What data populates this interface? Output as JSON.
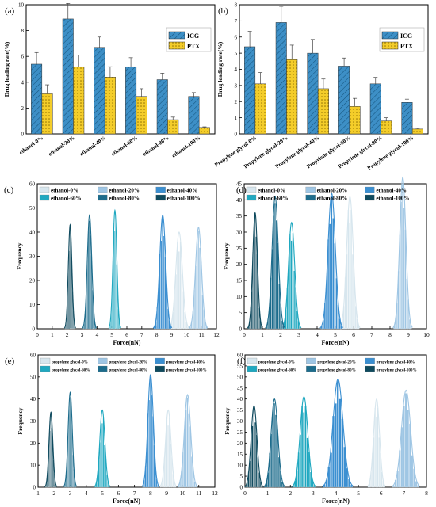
{
  "figure": {
    "colors": {
      "icg": "#3d8fc6",
      "ptx": "#f4cd2a",
      "fit_light": "#d7e6ee",
      "fit_blue": "#3b8fd1",
      "fit_teal": "#1fa8c0",
      "fit_dark": "#0f4a5e"
    }
  },
  "chart_data": [
    {
      "panel": "(a)",
      "type": "bar",
      "ylabel": "Drug loading rate(%)",
      "ylim": [
        0,
        10
      ],
      "yticks": [
        0,
        2,
        4,
        6,
        8,
        10
      ],
      "tick_labels_rotated": true,
      "categories": [
        "ethanol-0%",
        "ethanol-20%",
        "ethanol-40%",
        "ethanol-60%",
        "ethanol-80%",
        "ethanol-100%"
      ],
      "legend_position": "top-right",
      "series": [
        {
          "name": "ICG",
          "color": "#3d8fc6",
          "pattern": "hatch",
          "values": [
            5.4,
            8.9,
            6.7,
            5.2,
            4.2,
            2.9
          ],
          "errors": [
            0.9,
            1.2,
            0.8,
            0.7,
            0.5,
            0.3
          ]
        },
        {
          "name": "PTX",
          "color": "#f4cd2a",
          "pattern": "dots",
          "values": [
            3.1,
            5.2,
            4.4,
            2.9,
            1.1,
            0.5
          ],
          "errors": [
            0.7,
            0.9,
            0.8,
            0.6,
            0.2,
            0.05
          ]
        }
      ]
    },
    {
      "panel": "(b)",
      "type": "bar",
      "ylabel": "Drug loading rate(%)",
      "ylim": [
        0,
        8
      ],
      "yticks": [
        0,
        1,
        2,
        3,
        4,
        5,
        6,
        7,
        8
      ],
      "tick_labels_rotated": true,
      "categories": [
        "Propylene glycol-0%",
        "Propylene glycol-20%",
        "Propylene glycol-40%",
        "Propylene glycol-60%",
        "Propylene glycol-80%",
        "Propylene glycol-100%"
      ],
      "legend_position": "top-right",
      "series": [
        {
          "name": "ICG",
          "color": "#3d8fc6",
          "pattern": "hatch",
          "values": [
            5.4,
            6.9,
            5.0,
            4.2,
            3.1,
            1.95
          ],
          "errors": [
            0.95,
            1.0,
            0.85,
            0.5,
            0.4,
            0.2
          ]
        },
        {
          "name": "PTX",
          "color": "#f4cd2a",
          "pattern": "dots",
          "values": [
            3.1,
            4.6,
            2.8,
            1.7,
            0.8,
            0.3
          ],
          "errors": [
            0.7,
            0.9,
            0.6,
            0.5,
            0.2,
            0.05
          ]
        }
      ]
    },
    {
      "panel": "(c)",
      "type": "histogram",
      "xlabel": "Force(nN)",
      "ylabel": "Frequency",
      "xlim": [
        0,
        12
      ],
      "xticks": [
        0,
        1,
        2,
        3,
        4,
        5,
        6,
        7,
        8,
        9,
        10,
        11,
        12
      ],
      "ylim": [
        0,
        60
      ],
      "yticks": [
        0,
        10,
        20,
        30,
        40,
        50,
        60
      ],
      "legend_position": "top",
      "series": [
        {
          "name": "ethanol-0%",
          "color": "#d7e6ee",
          "peak": 9.5,
          "sigma": 0.22,
          "height": 40
        },
        {
          "name": "ethanol-20%",
          "color": "#9fc6e4",
          "peak": 10.8,
          "sigma": 0.2,
          "height": 42
        },
        {
          "name": "ethanol-40%",
          "color": "#3b8fd1",
          "peak": 8.4,
          "sigma": 0.2,
          "height": 47
        },
        {
          "name": "ethanol-60%",
          "color": "#1fa8c0",
          "peak": 5.2,
          "sigma": 0.13,
          "height": 49
        },
        {
          "name": "ethanol-80%",
          "color": "#1d6c8c",
          "peak": 3.5,
          "sigma": 0.15,
          "height": 47
        },
        {
          "name": "ethanol-100%",
          "color": "#0f4a5e",
          "peak": 2.2,
          "sigma": 0.12,
          "height": 43
        }
      ]
    },
    {
      "panel": "(d)",
      "type": "histogram",
      "xlabel": "Force(nN)",
      "ylabel": "Frequency",
      "xlim": [
        0,
        10
      ],
      "xticks": [
        0,
        1,
        2,
        3,
        4,
        5,
        6,
        7,
        8,
        9,
        10
      ],
      "ylim": [
        0,
        45
      ],
      "yticks": [
        0,
        5,
        10,
        15,
        20,
        25,
        30,
        35,
        40,
        45
      ],
      "legend_position": "top",
      "series": [
        {
          "name": "ethanol-0%",
          "color": "#d7e6ee",
          "peak": 5.8,
          "sigma": 0.18,
          "height": 41
        },
        {
          "name": "ethanol-20%",
          "color": "#9fc6e4",
          "peak": 8.7,
          "sigma": 0.17,
          "height": 47
        },
        {
          "name": "ethanol-40%",
          "color": "#3b8fd1",
          "peak": 4.8,
          "sigma": 0.2,
          "height": 42
        },
        {
          "name": "ethanol-60%",
          "color": "#1fa8c0",
          "peak": 2.6,
          "sigma": 0.17,
          "height": 33
        },
        {
          "name": "ethanol-80%",
          "color": "#1d6c8c",
          "peak": 1.7,
          "sigma": 0.17,
          "height": 41
        },
        {
          "name": "ethanol-100%",
          "color": "#0f4a5e",
          "peak": 0.6,
          "sigma": 0.13,
          "height": 36
        }
      ]
    },
    {
      "panel": "(e)",
      "type": "histogram",
      "xlabel": "Force(nN)",
      "ylabel": "Frequency",
      "xlim": [
        1,
        12
      ],
      "xticks": [
        1,
        2,
        3,
        4,
        5,
        6,
        7,
        8,
        9,
        10,
        11,
        12
      ],
      "ylim": [
        0,
        60
      ],
      "yticks": [
        0,
        10,
        20,
        30,
        40,
        50,
        60
      ],
      "legend_position": "top",
      "series": [
        {
          "name": "propylene glycol-0%",
          "color": "#d7e6ee",
          "peak": 9.1,
          "sigma": 0.17,
          "height": 35
        },
        {
          "name": "propylene glycol-20%",
          "color": "#9fc6e4",
          "peak": 10.3,
          "sigma": 0.2,
          "height": 42
        },
        {
          "name": "propylene glycol-40%",
          "color": "#3b8fd1",
          "peak": 8.0,
          "sigma": 0.17,
          "height": 51
        },
        {
          "name": "propylene glycol-60%",
          "color": "#1fa8c0",
          "peak": 5.0,
          "sigma": 0.16,
          "height": 35
        },
        {
          "name": "propylene glycol-80%",
          "color": "#1d6c8c",
          "peak": 3.0,
          "sigma": 0.13,
          "height": 43
        },
        {
          "name": "propylene glycol-100%",
          "color": "#0f4a5e",
          "peak": 1.8,
          "sigma": 0.12,
          "height": 34
        }
      ]
    },
    {
      "panel": "(f)",
      "type": "histogram",
      "xlabel": "Force(nN)",
      "ylabel": "Frequency",
      "xlim": [
        0,
        8
      ],
      "xticks": [
        0,
        1,
        2,
        3,
        4,
        5,
        6,
        7,
        8
      ],
      "ylim": [
        0,
        60
      ],
      "yticks": [
        0,
        5,
        10,
        15,
        20,
        25,
        30,
        35,
        40,
        45,
        50,
        55,
        60
      ],
      "legend_position": "top",
      "series": [
        {
          "name": "propylene glycol-0%",
          "color": "#d7e6ee",
          "peak": 5.8,
          "sigma": 0.13,
          "height": 40
        },
        {
          "name": "propylene glycol-20%",
          "color": "#9fc6e4",
          "peak": 7.1,
          "sigma": 0.2,
          "height": 44
        },
        {
          "name": "propylene glycol-40%",
          "color": "#3b8fd1",
          "peak": 4.1,
          "sigma": 0.22,
          "height": 49
        },
        {
          "name": "propylene glycol-60%",
          "color": "#1fa8c0",
          "peak": 2.6,
          "sigma": 0.17,
          "height": 41
        },
        {
          "name": "propylene glycol-80%",
          "color": "#1d6c8c",
          "peak": 1.3,
          "sigma": 0.15,
          "height": 40
        },
        {
          "name": "propylene glycol-100%",
          "color": "#0f4a5e",
          "peak": 0.4,
          "sigma": 0.13,
          "height": 37
        }
      ]
    }
  ]
}
